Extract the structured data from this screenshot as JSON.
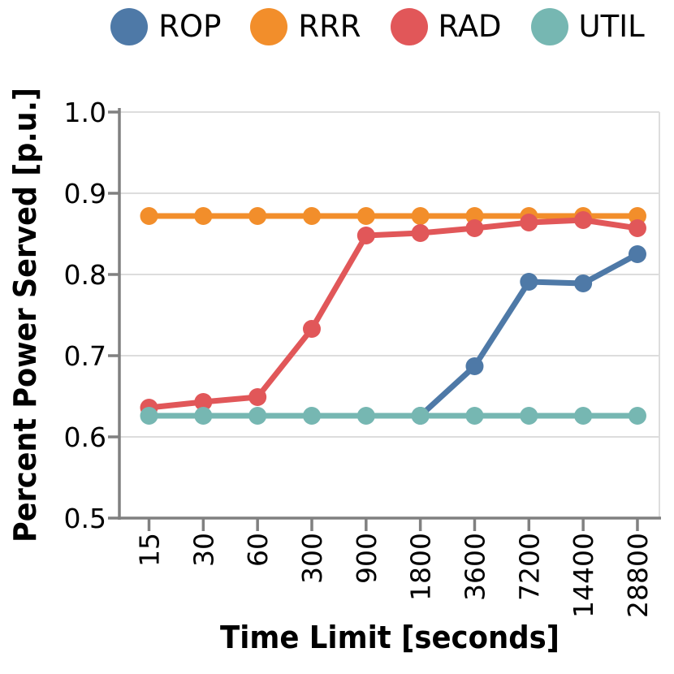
{
  "legend": {
    "items": [
      {
        "label": "ROP",
        "color": "#4E79A7"
      },
      {
        "label": "RRR",
        "color": "#F28E2B"
      },
      {
        "label": "RAD",
        "color": "#E15759"
      },
      {
        "label": "UTIL",
        "color": "#76B7B2"
      }
    ]
  },
  "chart_data": {
    "type": "line",
    "title": "",
    "xlabel": "Time Limit [seconds]",
    "ylabel": "Percent Power Served [p.u.]",
    "categories": [
      "15",
      "30",
      "60",
      "300",
      "900",
      "1800",
      "3600",
      "7200",
      "14400",
      "28800"
    ],
    "ytick_labels": [
      "0.5",
      "0.6",
      "0.7",
      "0.8",
      "0.9",
      "1.0"
    ],
    "ytick_values": [
      0.5,
      0.6,
      0.7,
      0.8,
      0.9,
      1.0
    ],
    "ylim": [
      0.5,
      1.0
    ],
    "grid": true,
    "legend_position": "top",
    "marker": "circle",
    "series": [
      {
        "name": "ROP",
        "color": "#4E79A7",
        "values": [
          null,
          null,
          null,
          null,
          null,
          0.626,
          0.687,
          0.791,
          0.789,
          0.825
        ]
      },
      {
        "name": "RRR",
        "color": "#F28E2B",
        "values": [
          0.872,
          0.872,
          0.872,
          0.872,
          0.872,
          0.872,
          0.872,
          0.872,
          0.872,
          0.872
        ]
      },
      {
        "name": "RAD",
        "color": "#E15759",
        "values": [
          0.636,
          0.643,
          0.649,
          0.733,
          0.848,
          0.851,
          0.857,
          0.864,
          0.867,
          0.857
        ]
      },
      {
        "name": "UTIL",
        "color": "#76B7B2",
        "values": [
          0.626,
          0.626,
          0.626,
          0.626,
          0.626,
          0.626,
          0.626,
          0.626,
          0.626,
          0.626
        ]
      }
    ]
  },
  "style": {
    "grid_color": "#DDDDDD",
    "spine_color": "#808080",
    "text_color": "#000000",
    "background": "#FFFFFF"
  }
}
